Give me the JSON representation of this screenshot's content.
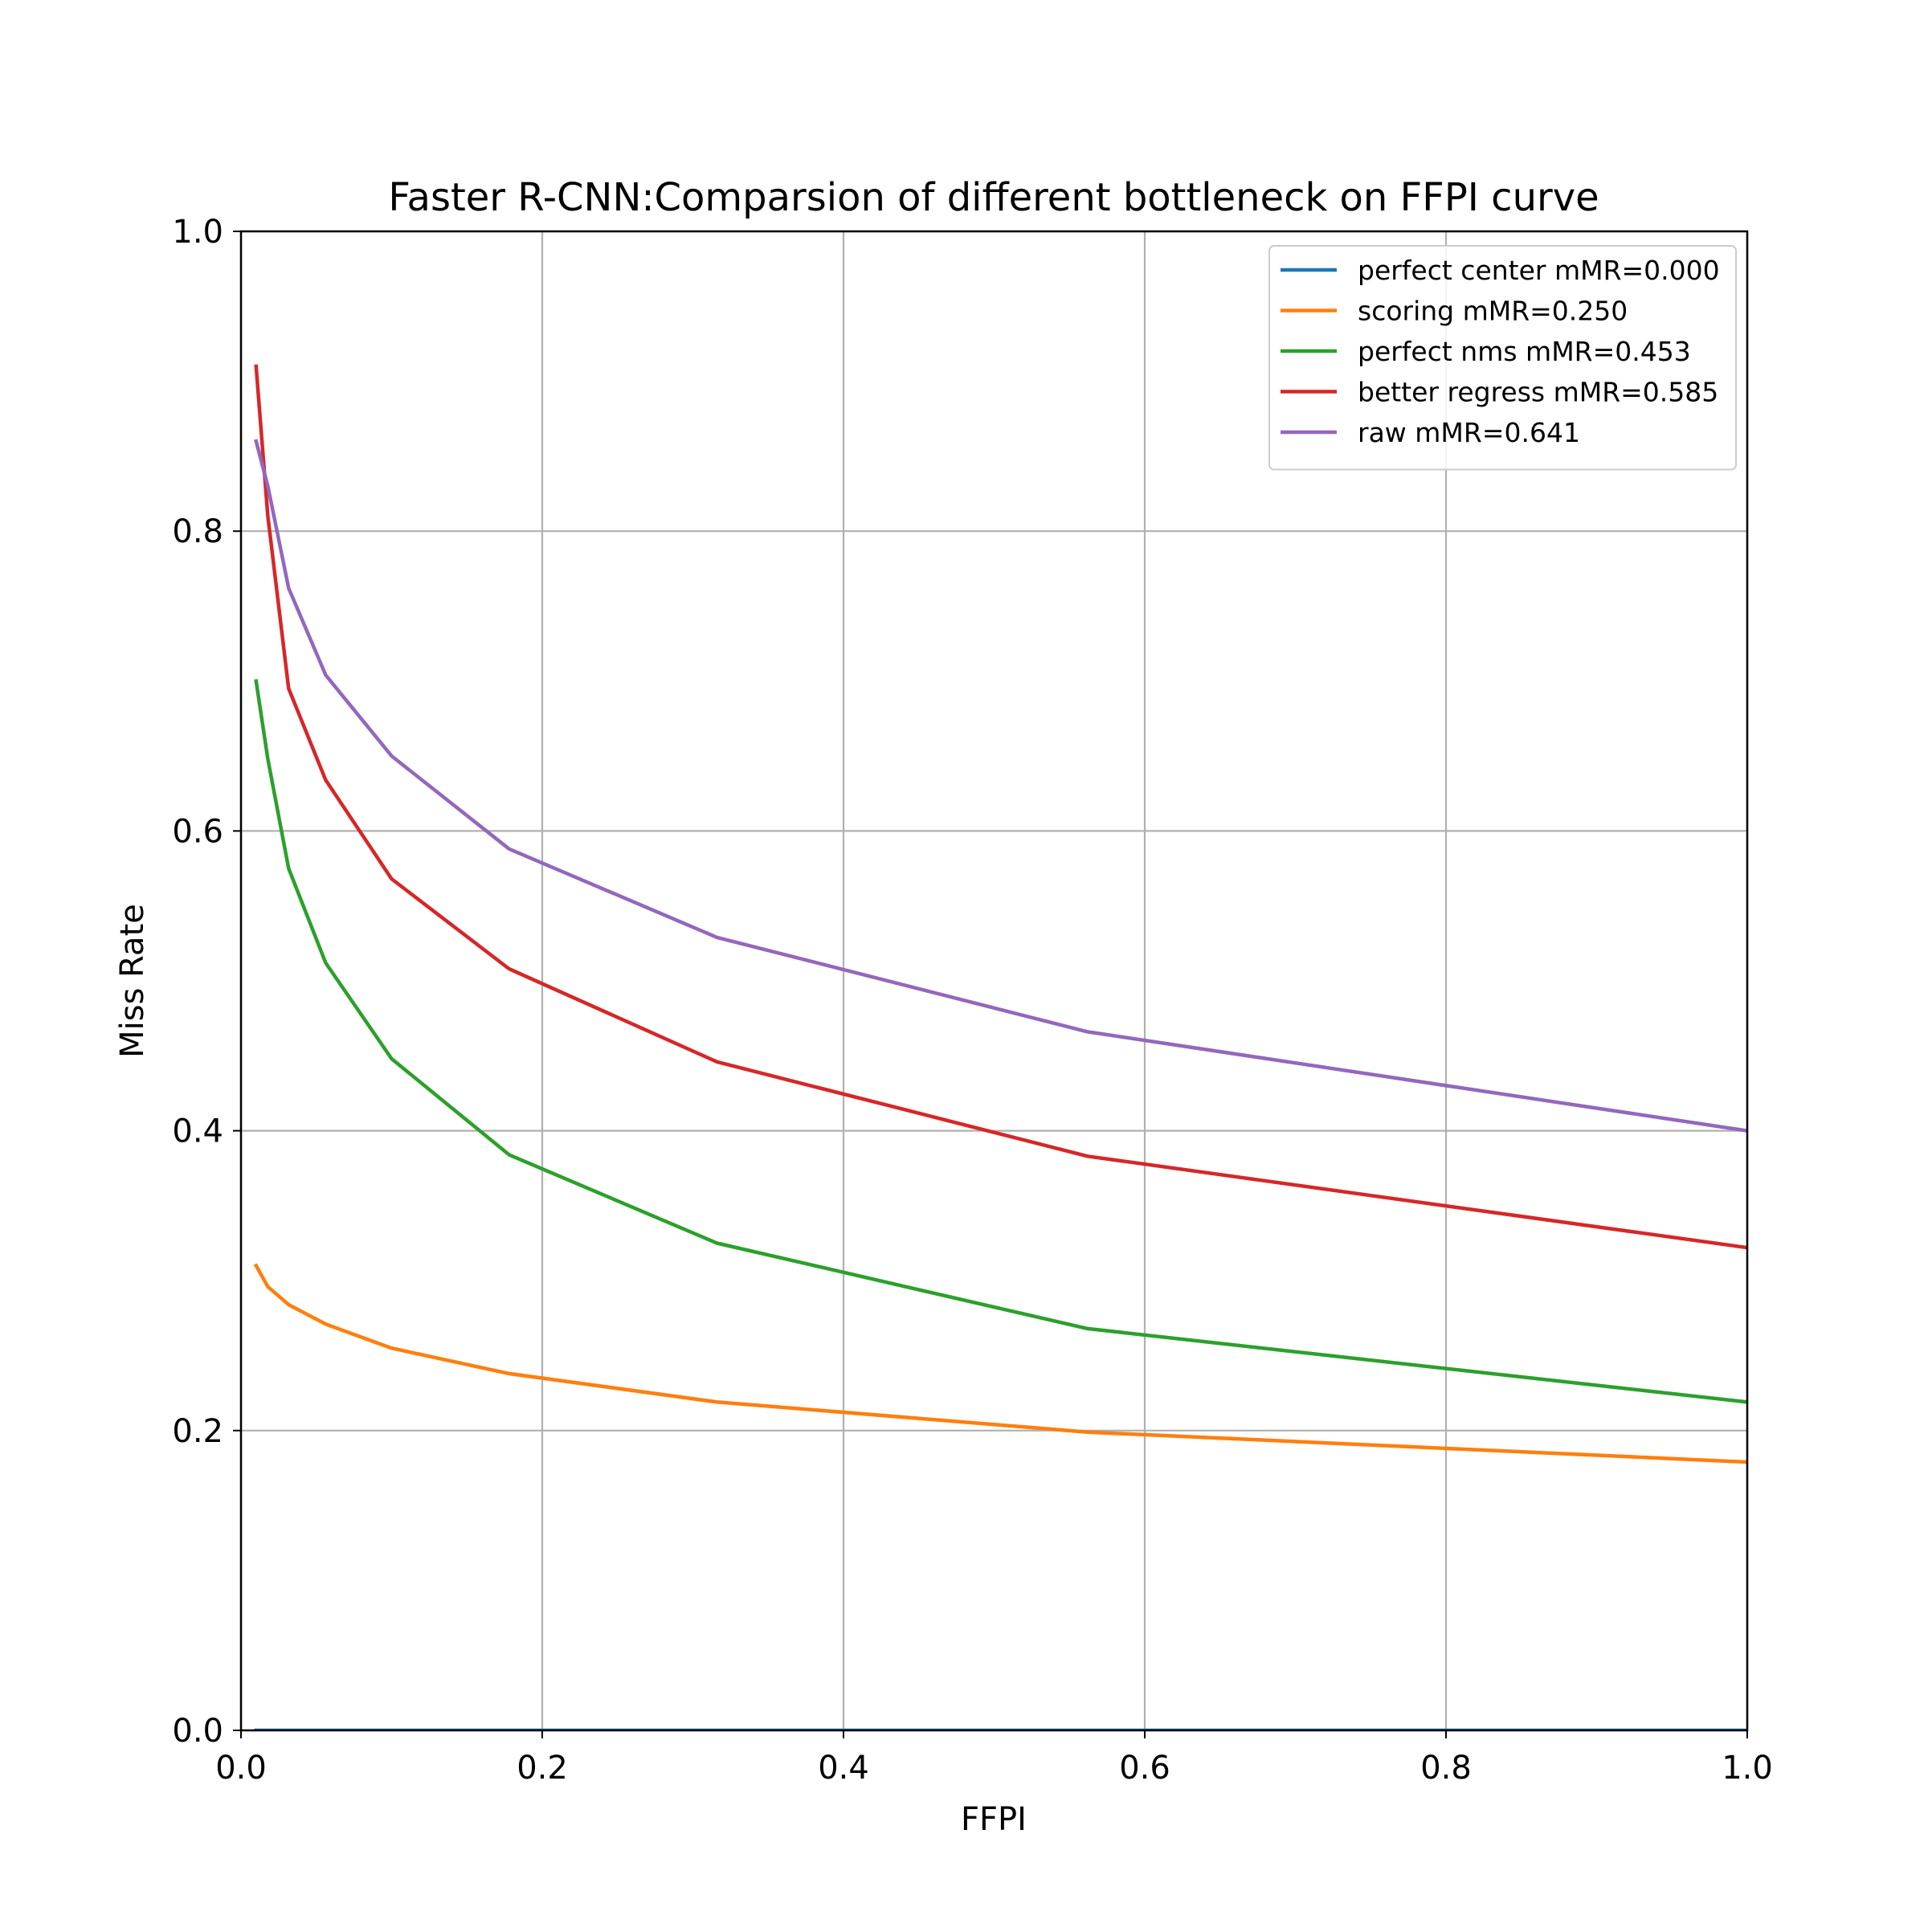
{
  "chart_data": {
    "type": "line",
    "title": "Faster R-CNN:Comparsion of different bottleneck on FFPI curve",
    "xlabel": "FFPI",
    "ylabel": "Miss Rate",
    "xlim": [
      0.0,
      1.0
    ],
    "ylim": [
      0.0,
      1.0
    ],
    "xticks": [
      "0.0",
      "0.2",
      "0.4",
      "0.6",
      "0.8",
      "1.0"
    ],
    "yticks": [
      "0.0",
      "0.2",
      "0.4",
      "0.6",
      "0.8",
      "1.0"
    ],
    "grid": true,
    "legend_position": "top-right",
    "x": [
      0.01,
      0.0178,
      0.0316,
      0.0562,
      0.1,
      0.178,
      0.316,
      0.562,
      1.0
    ],
    "series": [
      {
        "name": "perfect center mMR=0.000",
        "color": "#1f77b4",
        "values": [
          0.0,
          0.0,
          0.0,
          0.0,
          0.0,
          0.0,
          0.0,
          0.0,
          0.0
        ]
      },
      {
        "name": "scoring mMR=0.250",
        "color": "#ff7f0e",
        "values": [
          0.31,
          0.296,
          0.284,
          0.271,
          0.255,
          0.238,
          0.219,
          0.199,
          0.179
        ]
      },
      {
        "name": "perfect nms mMR=0.453",
        "color": "#2ca02c",
        "values": [
          0.7,
          0.648,
          0.575,
          0.512,
          0.448,
          0.384,
          0.325,
          0.268,
          0.219
        ]
      },
      {
        "name": "better regress mMR=0.585",
        "color": "#d62728",
        "values": [
          0.91,
          0.81,
          0.695,
          0.634,
          0.568,
          0.508,
          0.446,
          0.383,
          0.322
        ]
      },
      {
        "name": "raw mMR=0.641",
        "color": "#9467bd",
        "values": [
          0.86,
          0.83,
          0.762,
          0.704,
          0.65,
          0.588,
          0.529,
          0.466,
          0.4
        ]
      }
    ]
  }
}
